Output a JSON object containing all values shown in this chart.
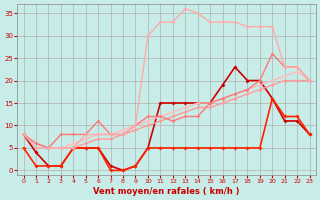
{
  "background_color": "#c8ece8",
  "grid_color": "#b0b0b0",
  "xlabel": "Vent moyen/en rafales ( km/h )",
  "xlabel_color": "#cc0000",
  "ylabel_color": "#cc0000",
  "yticks": [
    0,
    5,
    10,
    15,
    20,
    25,
    30,
    35
  ],
  "xticks": [
    0,
    1,
    2,
    3,
    4,
    5,
    6,
    7,
    8,
    9,
    10,
    11,
    12,
    13,
    14,
    15,
    16,
    17,
    18,
    19,
    20,
    21,
    22,
    23
  ],
  "ylim": [
    -1,
    37
  ],
  "xlim": [
    -0.5,
    23.5
  ],
  "lines": [
    {
      "x": [
        0,
        1,
        2,
        3,
        4,
        5,
        6,
        7,
        8,
        9,
        10,
        11,
        12,
        13,
        14,
        15,
        16,
        17,
        18,
        19,
        20,
        21,
        22,
        23
      ],
      "y": [
        8,
        4,
        1,
        1,
        5,
        5,
        5,
        1,
        0,
        1,
        5,
        15,
        15,
        15,
        15,
        15,
        19,
        23,
        20,
        20,
        16,
        11,
        11,
        8
      ],
      "color": "#cc0000",
      "lw": 1.2,
      "marker": "D",
      "ms": 2.0
    },
    {
      "x": [
        0,
        1,
        2,
        3,
        4,
        5,
        6,
        7,
        8,
        9,
        10,
        11,
        12,
        13,
        14,
        15,
        16,
        17,
        18,
        19,
        20,
        21,
        22,
        23
      ],
      "y": [
        5,
        1,
        1,
        1,
        5,
        5,
        5,
        0,
        0,
        1,
        5,
        5,
        5,
        5,
        5,
        5,
        5,
        5,
        5,
        5,
        16,
        12,
        12,
        8
      ],
      "color": "#ff2200",
      "lw": 1.2,
      "marker": "D",
      "ms": 2.0
    },
    {
      "x": [
        0,
        1,
        2,
        3,
        4,
        5,
        6,
        7,
        8,
        9,
        10,
        11,
        12,
        13,
        14,
        15,
        16,
        17,
        18,
        19,
        20,
        21,
        22,
        23
      ],
      "y": [
        8,
        6,
        5,
        5,
        5,
        6,
        7,
        7,
        8,
        9,
        10,
        11,
        12,
        13,
        14,
        14,
        15,
        16,
        17,
        18,
        19,
        20,
        20,
        20
      ],
      "color": "#ff9999",
      "lw": 1.0,
      "marker": "D",
      "ms": 1.8
    },
    {
      "x": [
        0,
        1,
        2,
        3,
        4,
        5,
        6,
        7,
        8,
        9,
        10,
        11,
        12,
        13,
        14,
        15,
        16,
        17,
        18,
        19,
        20,
        21,
        22,
        23
      ],
      "y": [
        8,
        6,
        5,
        5,
        6,
        7,
        8,
        8,
        9,
        10,
        11,
        12,
        13,
        14,
        15,
        15,
        16,
        17,
        18,
        19,
        20,
        21,
        22,
        20
      ],
      "color": "#ffbbbb",
      "lw": 1.0,
      "marker": "D",
      "ms": 1.8
    },
    {
      "x": [
        0,
        1,
        2,
        3,
        4,
        5,
        6,
        7,
        8,
        9,
        10,
        11,
        12,
        13,
        14,
        15,
        16,
        17,
        18,
        19,
        20,
        21,
        22,
        23
      ],
      "y": [
        8,
        6,
        5,
        8,
        8,
        8,
        11,
        8,
        8,
        10,
        12,
        12,
        11,
        12,
        12,
        15,
        16,
        17,
        18,
        20,
        26,
        23,
        23,
        20
      ],
      "color": "#ff7777",
      "lw": 1.0,
      "marker": "D",
      "ms": 1.8
    },
    {
      "x": [
        0,
        1,
        2,
        3,
        4,
        5,
        6,
        7,
        8,
        9,
        10,
        11,
        12,
        13,
        14,
        15,
        16,
        17,
        18,
        19,
        20,
        21,
        22,
        23
      ],
      "y": [
        8,
        5,
        5,
        5,
        5,
        8,
        8,
        8,
        8,
        10,
        30,
        33,
        33,
        36,
        35,
        33,
        33,
        33,
        32,
        32,
        32,
        23,
        23,
        20
      ],
      "color": "#ffaaaa",
      "lw": 1.0,
      "marker": "D",
      "ms": 1.8
    }
  ]
}
